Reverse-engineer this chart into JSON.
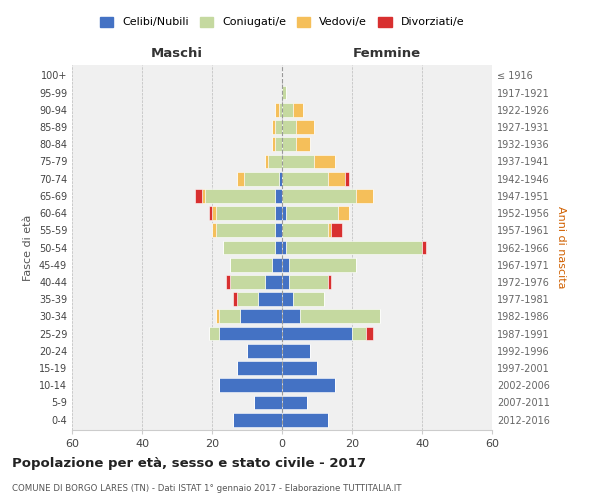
{
  "age_groups": [
    "0-4",
    "5-9",
    "10-14",
    "15-19",
    "20-24",
    "25-29",
    "30-34",
    "35-39",
    "40-44",
    "45-49",
    "50-54",
    "55-59",
    "60-64",
    "65-69",
    "70-74",
    "75-79",
    "80-84",
    "85-89",
    "90-94",
    "95-99",
    "100+"
  ],
  "birth_years": [
    "2012-2016",
    "2007-2011",
    "2002-2006",
    "1997-2001",
    "1992-1996",
    "1987-1991",
    "1982-1986",
    "1977-1981",
    "1972-1976",
    "1967-1971",
    "1962-1966",
    "1957-1961",
    "1952-1956",
    "1947-1951",
    "1942-1946",
    "1937-1941",
    "1932-1936",
    "1927-1931",
    "1922-1926",
    "1917-1921",
    "≤ 1916"
  ],
  "maschi": {
    "celibi": [
      14,
      8,
      18,
      13,
      10,
      18,
      12,
      7,
      5,
      3,
      2,
      2,
      2,
      2,
      1,
      0,
      0,
      0,
      0,
      0,
      0
    ],
    "coniugati": [
      0,
      0,
      0,
      0,
      0,
      3,
      6,
      6,
      10,
      12,
      15,
      17,
      17,
      20,
      10,
      4,
      2,
      2,
      1,
      0,
      0
    ],
    "vedovi": [
      0,
      0,
      0,
      0,
      0,
      0,
      1,
      0,
      0,
      0,
      0,
      1,
      1,
      1,
      2,
      1,
      1,
      1,
      1,
      0,
      0
    ],
    "divorziati": [
      0,
      0,
      0,
      0,
      0,
      0,
      0,
      1,
      1,
      0,
      0,
      0,
      1,
      2,
      0,
      0,
      0,
      0,
      0,
      0,
      0
    ]
  },
  "femmine": {
    "nubili": [
      13,
      7,
      15,
      10,
      8,
      20,
      5,
      3,
      2,
      2,
      1,
      0,
      1,
      0,
      0,
      0,
      0,
      0,
      0,
      0,
      0
    ],
    "coniugate": [
      0,
      0,
      0,
      0,
      0,
      4,
      23,
      9,
      11,
      19,
      39,
      13,
      15,
      21,
      13,
      9,
      4,
      4,
      3,
      1,
      0
    ],
    "vedove": [
      0,
      0,
      0,
      0,
      0,
      0,
      0,
      0,
      0,
      0,
      0,
      1,
      3,
      5,
      5,
      6,
      4,
      5,
      3,
      0,
      0
    ],
    "divorziate": [
      0,
      0,
      0,
      0,
      0,
      2,
      0,
      0,
      1,
      0,
      1,
      3,
      0,
      0,
      1,
      0,
      0,
      0,
      0,
      0,
      0
    ]
  },
  "colors": {
    "celibi": "#4472c4",
    "coniugati": "#c5d9a0",
    "vedovi": "#f5bf5a",
    "divorziati": "#d83030"
  },
  "legend_labels": [
    "Celibi/Nubili",
    "Coniugati/e",
    "Vedovi/e",
    "Divorziati/e"
  ],
  "title": "Popolazione per età, sesso e stato civile - 2017",
  "subtitle": "COMUNE DI BORGO LARES (TN) - Dati ISTAT 1° gennaio 2017 - Elaborazione TUTTITALIA.IT",
  "xlabel_left": "Maschi",
  "xlabel_right": "Femmine",
  "ylabel_left": "Fasce di età",
  "ylabel_right": "Anni di nascita",
  "xlim": 60,
  "bg_color": "#f0f0f0"
}
